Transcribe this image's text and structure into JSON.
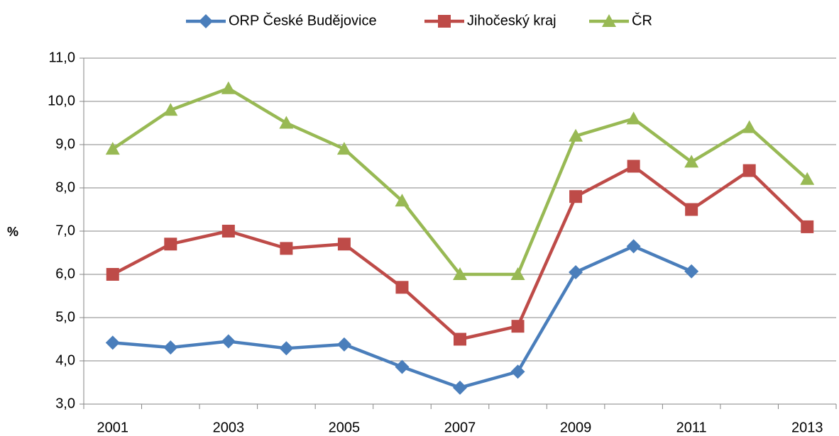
{
  "chart_data": {
    "type": "line",
    "y_label": "%",
    "categories": [
      "2001",
      null,
      "2003",
      null,
      "2005",
      null,
      "2007",
      null,
      "2009",
      null,
      "2011",
      null,
      "2013"
    ],
    "series": [
      {
        "name": "ORP České Budějovice",
        "color": "#4a7ebb",
        "marker": "diamond",
        "values": [
          4.42,
          4.31,
          4.45,
          4.29,
          4.38,
          3.86,
          3.38,
          3.75,
          6.05,
          6.65,
          6.07,
          null,
          null
        ]
      },
      {
        "name": "Jihočeský kraj",
        "color": "#be4b48",
        "marker": "square",
        "values": [
          6.0,
          6.7,
          7.0,
          6.6,
          6.7,
          5.7,
          4.5,
          4.8,
          7.8,
          8.5,
          7.5,
          8.4,
          7.1
        ]
      },
      {
        "name": "ČR",
        "color": "#98b954",
        "marker": "triangle",
        "values": [
          8.9,
          9.8,
          10.3,
          9.5,
          8.9,
          7.7,
          6.0,
          6.0,
          9.2,
          9.6,
          8.6,
          9.4,
          8.2
        ]
      }
    ],
    "ylim": [
      3,
      11
    ],
    "yticks": [
      {
        "value": 3,
        "label": "3,0"
      },
      {
        "value": 4,
        "label": "4,0"
      },
      {
        "value": 5,
        "label": "5,0"
      },
      {
        "value": 6,
        "label": "6,0"
      },
      {
        "value": 7,
        "label": "7,0"
      },
      {
        "value": 8,
        "label": "8,0"
      },
      {
        "value": 9,
        "label": "9,0"
      },
      {
        "value": 10,
        "label": "10,0"
      },
      {
        "value": 11,
        "label": "11,0"
      }
    ],
    "grid": true,
    "legend": "top"
  }
}
